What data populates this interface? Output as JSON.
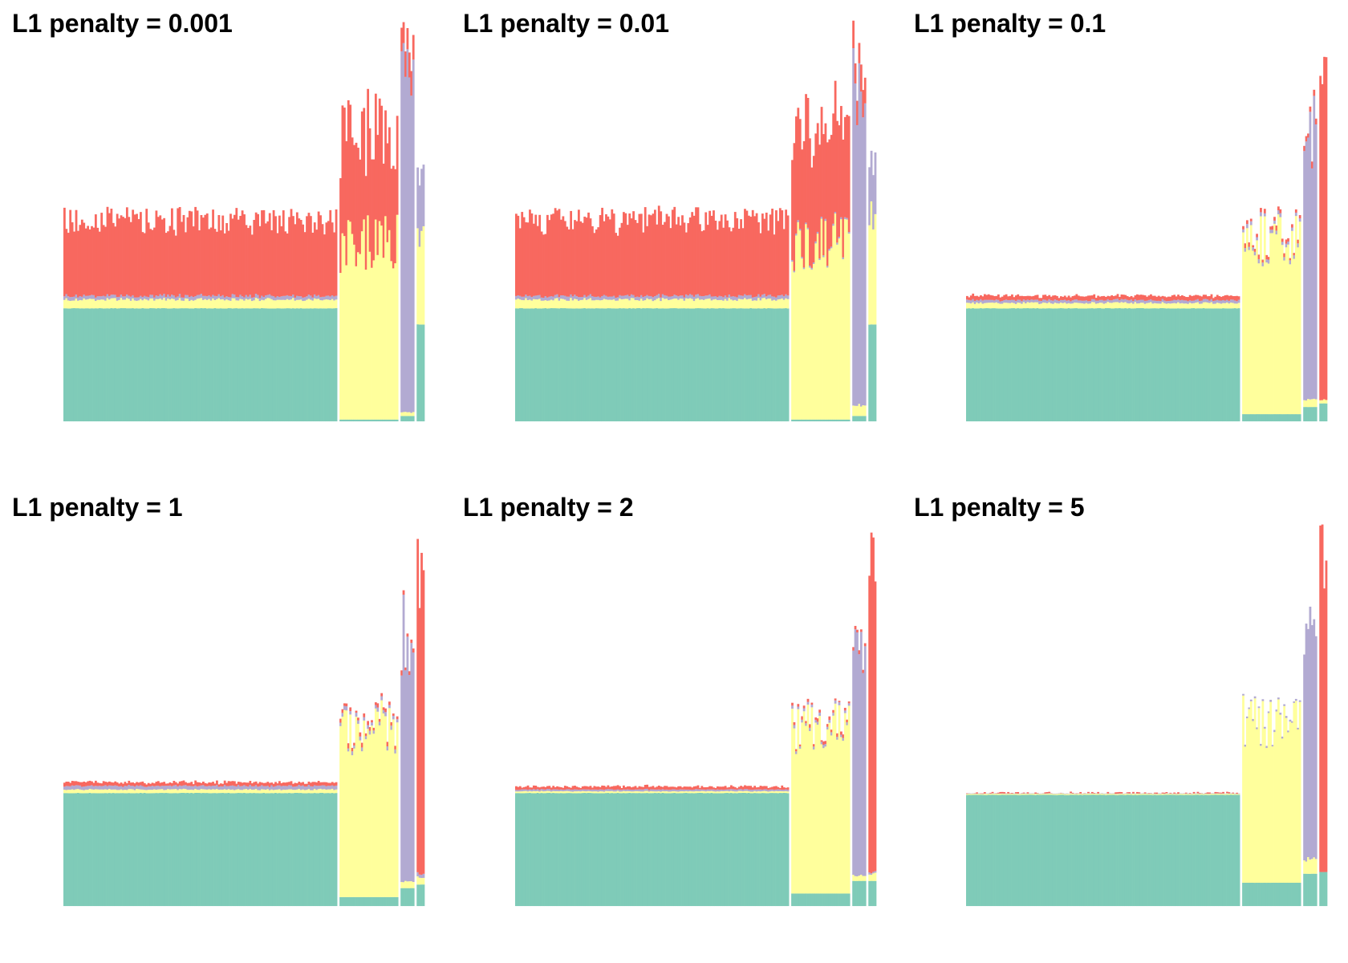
{
  "figure": {
    "colors": {
      "k1": "#7fcbb8",
      "k2": "#ffff9c",
      "k3": "#b2aad2",
      "k4": "#f8685f"
    },
    "background": "#ffffff"
  },
  "chart_data": [
    {
      "type": "bar",
      "title": "L1 penalty = 0.001",
      "stacked": true,
      "axes_visible": false,
      "ylim": [
        0,
        1
      ],
      "groups": [
        {
          "n": 140,
          "values": [
            0.315,
            0.025,
            0.01,
            0.21
          ]
        },
        {
          "n": 30,
          "values": [
            0.005,
            0.495,
            0.0,
            0.31
          ]
        },
        {
          "n": 7,
          "values": [
            0.015,
            0.01,
            0.905,
            0.065
          ]
        },
        {
          "n": 4,
          "values": [
            0.27,
            0.24,
            0.17,
            0.0
          ]
        }
      ]
    },
    {
      "type": "bar",
      "title": "L1 penalty = 0.01",
      "stacked": true,
      "axes_visible": false,
      "ylim": [
        0,
        1
      ],
      "groups": [
        {
          "n": 140,
          "values": [
            0.315,
            0.025,
            0.01,
            0.21
          ]
        },
        {
          "n": 30,
          "values": [
            0.005,
            0.49,
            0.005,
            0.31
          ]
        },
        {
          "n": 7,
          "values": [
            0.015,
            0.03,
            0.885,
            0.065
          ]
        },
        {
          "n": 4,
          "values": [
            0.27,
            0.32,
            0.17,
            0.0
          ]
        }
      ]
    },
    {
      "type": "bar",
      "title": "L1 penalty = 0.1",
      "stacked": true,
      "axes_visible": false,
      "ylim": [
        0,
        1
      ],
      "groups": [
        {
          "n": 140,
          "values": [
            0.315,
            0.015,
            0.008,
            0.012
          ]
        },
        {
          "n": 30,
          "values": [
            0.02,
            0.49,
            0.01,
            0.01
          ]
        },
        {
          "n": 7,
          "values": [
            0.04,
            0.02,
            0.755,
            0.015
          ]
        },
        {
          "n": 4,
          "values": [
            0.05,
            0.01,
            0.0,
            0.9
          ]
        }
      ]
    },
    {
      "type": "bar",
      "title": "L1 penalty = 1",
      "stacked": true,
      "axes_visible": false,
      "ylim": [
        0,
        1
      ],
      "groups": [
        {
          "n": 140,
          "values": [
            0.315,
            0.01,
            0.01,
            0.01
          ]
        },
        {
          "n": 30,
          "values": [
            0.025,
            0.47,
            0.01,
            0.01
          ]
        },
        {
          "n": 7,
          "values": [
            0.05,
            0.02,
            0.69,
            0.01
          ]
        },
        {
          "n": 4,
          "values": [
            0.06,
            0.02,
            0.01,
            0.89
          ]
        }
      ]
    },
    {
      "type": "bar",
      "title": "L1 penalty = 2",
      "stacked": true,
      "axes_visible": false,
      "ylim": [
        0,
        1
      ],
      "groups": [
        {
          "n": 140,
          "values": [
            0.315,
            0.005,
            0.005,
            0.008
          ]
        },
        {
          "n": 30,
          "values": [
            0.035,
            0.46,
            0.008,
            0.007
          ]
        },
        {
          "n": 7,
          "values": [
            0.07,
            0.015,
            0.685,
            0.01
          ]
        },
        {
          "n": 4,
          "values": [
            0.07,
            0.02,
            0.005,
            0.9
          ]
        }
      ]
    },
    {
      "type": "bar",
      "title": "L1 penalty = 5",
      "stacked": true,
      "axes_visible": false,
      "ylim": [
        0,
        1
      ],
      "groups": [
        {
          "n": 140,
          "values": [
            0.31,
            0.003,
            0.001,
            0.001
          ]
        },
        {
          "n": 30,
          "values": [
            0.065,
            0.455,
            0.005,
            0.0
          ]
        },
        {
          "n": 7,
          "values": [
            0.09,
            0.04,
            0.64,
            0.0
          ]
        },
        {
          "n": 4,
          "values": [
            0.095,
            0.0,
            0.0,
            0.9
          ]
        }
      ]
    }
  ]
}
